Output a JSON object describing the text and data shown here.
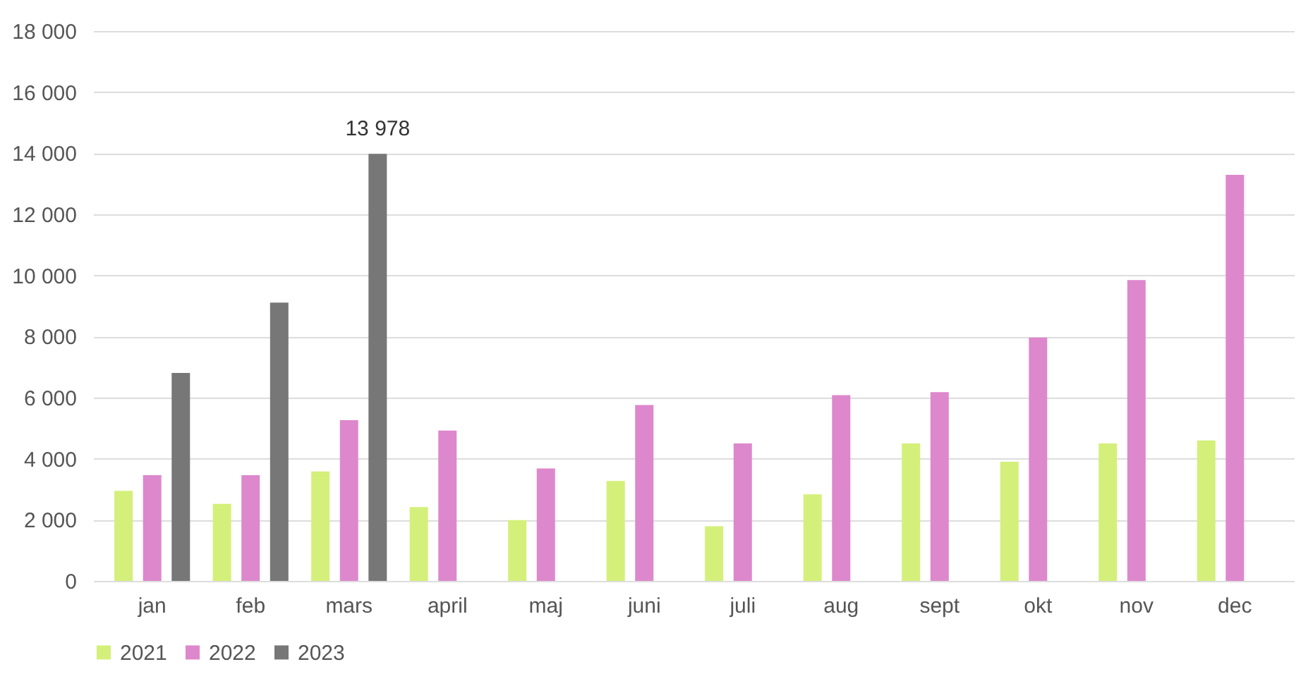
{
  "chart_data": {
    "type": "bar",
    "categories": [
      "jan",
      "feb",
      "mars",
      "april",
      "maj",
      "juni",
      "juli",
      "aug",
      "sept",
      "okt",
      "nov",
      "dec"
    ],
    "series": [
      {
        "name": "2021",
        "color": "#d4f07a",
        "values": [
          2950,
          2520,
          3580,
          2420,
          1990,
          3270,
          1790,
          2830,
          4500,
          3900,
          4500,
          4600
        ]
      },
      {
        "name": "2022",
        "color": "#dd88cc",
        "values": [
          3460,
          3460,
          5260,
          4920,
          3680,
          5760,
          4500,
          6080,
          6180,
          7970,
          9850,
          13290
        ]
      },
      {
        "name": "2023",
        "color": "#777777",
        "values": [
          6810,
          9110,
          13978,
          null,
          null,
          null,
          null,
          null,
          null,
          null,
          null,
          null
        ],
        "value_labels": [
          null,
          null,
          "13 978",
          null,
          null,
          null,
          null,
          null,
          null,
          null,
          null,
          null
        ]
      }
    ],
    "ylim": [
      0,
      18000
    ],
    "yticks": [
      0,
      {
        "value": 2000,
        "label": "2 000"
      },
      {
        "value": 4000,
        "label": "4 000"
      },
      {
        "value": 6000,
        "label": "6 000"
      },
      {
        "value": 8000,
        "label": "8 000"
      },
      {
        "value": 10000,
        "label": "10 000"
      },
      {
        "value": 12000,
        "label": "12 000"
      },
      {
        "value": 14000,
        "label": "14 000"
      },
      {
        "value": 16000,
        "label": "16 000"
      },
      {
        "value": 18000,
        "label": "18 000"
      }
    ],
    "grid": "y",
    "legend": "bottom"
  }
}
